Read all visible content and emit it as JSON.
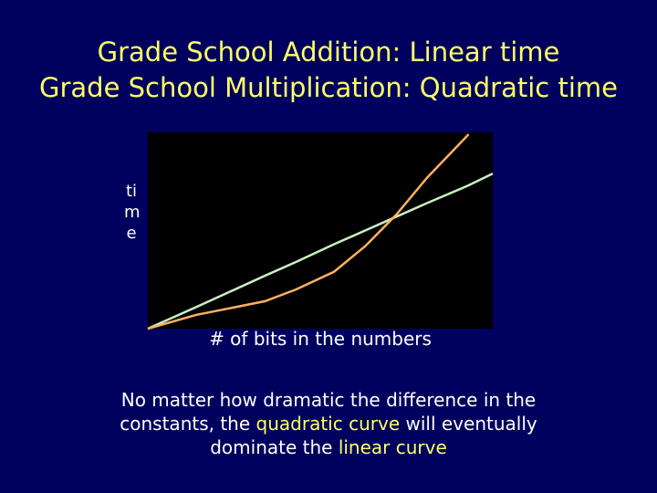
{
  "chart_data": {
    "type": "line",
    "title": [
      "Grade School Addition: Linear time",
      "Grade School Multiplication: Quadratic time"
    ],
    "y_label": "time",
    "x_label": "# of bits in the numbers",
    "x": [
      0,
      14,
      34,
      43,
      54,
      63,
      72,
      81,
      93,
      100
    ],
    "xlim": [
      0,
      100
    ],
    "ylim": [
      0,
      100
    ],
    "series": [
      {
        "color": "#c8f0c0",
        "values": [
          0,
          11,
          27,
          34,
          43,
          50,
          57,
          64,
          73,
          79
        ]
      },
      {
        "color": "#ffb060",
        "values": [
          0,
          7,
          14,
          20,
          29,
          42,
          58,
          77,
          99,
          null
        ]
      }
    ]
  },
  "caption": {
    "lines": [
      [
        "No matter how dramatic the difference in the"
      ],
      [
        "constants, the",
        "quadratic curve",
        "will eventually"
      ],
      [
        "dominate the",
        "linear curve"
      ]
    ]
  }
}
